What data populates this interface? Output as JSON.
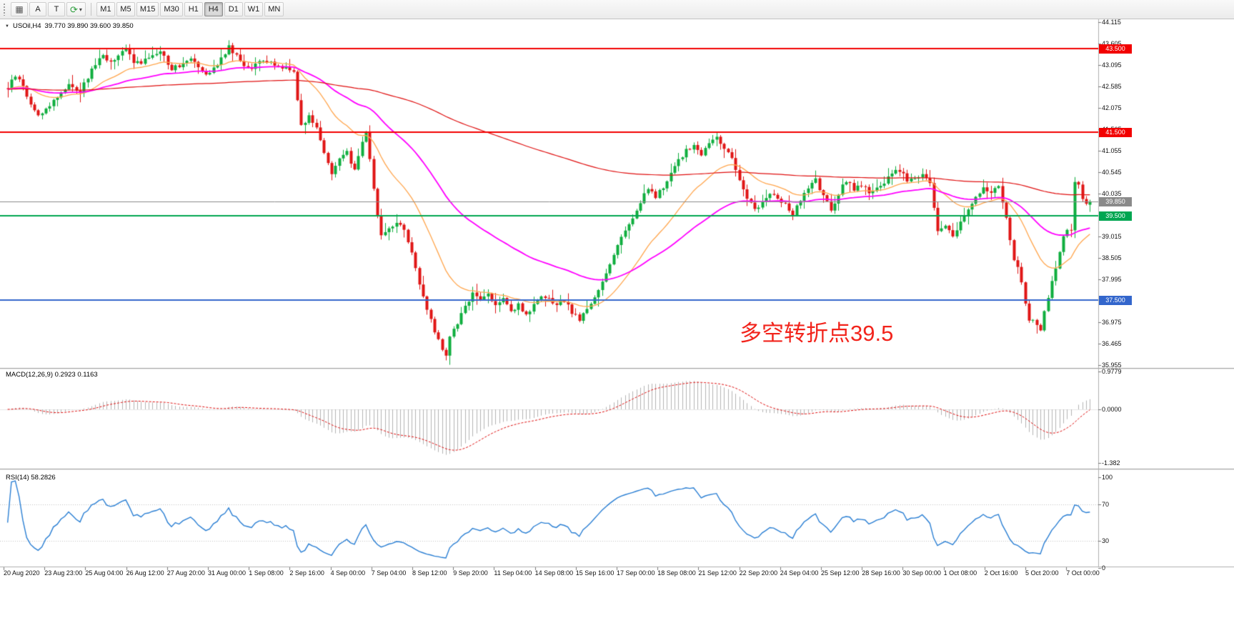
{
  "toolbar": {
    "grid_icon": "▦",
    "refresh_icon": "⟳",
    "caret_icon": "▾",
    "buttons": [
      {
        "label": "A"
      },
      {
        "label": "T"
      }
    ],
    "timeframes": [
      "M1",
      "M5",
      "M15",
      "M30",
      "H1",
      "H4",
      "D1",
      "W1",
      "MN"
    ],
    "active_timeframe": "H4"
  },
  "chart": {
    "expand_icon": "▼",
    "title": "USOil,H4",
    "ohlc_text": "39.770 39.890 39.600 39.850",
    "annotation": {
      "text": "多空转折点39.5",
      "color": "#f2241c"
    }
  },
  "macd_panel": {
    "label": "MACD(12,26,9) 0.2923 0.1163"
  },
  "rsi_panel": {
    "label": "RSI(14) 58.2826"
  },
  "chart_data": {
    "type": "candlestick",
    "symbol": "USOil",
    "timeframe": "H4",
    "current_ohlc": {
      "open": 39.77,
      "high": 39.89,
      "low": 39.6,
      "close": 39.85
    },
    "candle_count": 285,
    "up_color": "#0fae3e",
    "down_color": "#e01515",
    "ylim": [
      35.88,
      44.19
    ],
    "y_ticks": [
      "44.115",
      "43.605",
      "43.095",
      "42.585",
      "42.075",
      "41.565",
      "41.055",
      "40.545",
      "40.035",
      "39.015",
      "38.505",
      "37.995",
      "36.975",
      "36.465",
      "35.955"
    ],
    "x_ticks": [
      "20 Aug 2020",
      "23 Aug 23:00",
      "25 Aug 04:00",
      "26 Aug 12:00",
      "27 Aug 20:00",
      "31 Aug 00:00",
      "1 Sep 08:00",
      "2 Sep 16:00",
      "4 Sep 00:00",
      "7 Sep 04:00",
      "8 Sep 12:00",
      "9 Sep 20:00",
      "11 Sep 04:00",
      "14 Sep 08:00",
      "15 Sep 16:00",
      "17 Sep 00:00",
      "18 Sep 08:00",
      "21 Sep 12:00",
      "22 Sep 20:00",
      "24 Sep 04:00",
      "25 Sep 12:00",
      "28 Sep 16:00",
      "30 Sep 00:00",
      "1 Oct 08:00",
      "2 Oct 16:00",
      "5 Oct 20:00",
      "7 Oct 00:00"
    ],
    "levels": [
      {
        "price": 43.5,
        "label": "43.500",
        "color": "#f20000",
        "width": 2
      },
      {
        "price": 41.5,
        "label": "41.500",
        "color": "#f20000",
        "width": 2
      },
      {
        "price": 39.85,
        "label": "39.850",
        "color": "#8a8a8a",
        "width": 1,
        "current": true
      },
      {
        "price": 39.5,
        "label": "39.500",
        "color": "#00a651",
        "width": 2
      },
      {
        "price": 37.5,
        "label": "37.500",
        "color": "#3366cc",
        "width": 2
      }
    ],
    "price_path_anchors": [
      [
        0,
        42.55
      ],
      [
        2,
        42.85
      ],
      [
        4,
        42.6
      ],
      [
        6,
        42.15
      ],
      [
        8,
        41.9
      ],
      [
        10,
        42.05
      ],
      [
        13,
        42.35
      ],
      [
        16,
        42.65
      ],
      [
        19,
        42.45
      ],
      [
        22,
        43.0
      ],
      [
        25,
        43.35
      ],
      [
        27,
        43.15
      ],
      [
        29,
        43.3
      ],
      [
        31,
        43.5
      ],
      [
        33,
        43.2
      ],
      [
        35,
        43.1
      ],
      [
        37,
        43.3
      ],
      [
        40,
        43.45
      ],
      [
        43,
        43.0
      ],
      [
        46,
        43.15
      ],
      [
        48,
        43.3
      ],
      [
        50,
        43.1
      ],
      [
        52,
        42.9
      ],
      [
        55,
        43.1
      ],
      [
        58,
        43.55
      ],
      [
        60,
        43.3
      ],
      [
        62,
        43.1
      ],
      [
        64,
        43.05
      ],
      [
        67,
        43.2
      ],
      [
        70,
        43.1
      ],
      [
        73,
        43.05
      ],
      [
        75,
        42.95
      ],
      [
        76,
        42.3
      ],
      [
        77,
        41.65
      ],
      [
        79,
        41.9
      ],
      [
        81,
        41.6
      ],
      [
        83,
        41.05
      ],
      [
        85,
        40.5
      ],
      [
        87,
        40.85
      ],
      [
        89,
        41.0
      ],
      [
        91,
        40.6
      ],
      [
        93,
        41.25
      ],
      [
        94,
        41.5
      ],
      [
        95,
        40.9
      ],
      [
        96,
        40.2
      ],
      [
        97,
        39.45
      ],
      [
        98,
        39.05
      ],
      [
        100,
        39.2
      ],
      [
        102,
        39.35
      ],
      [
        104,
        39.2
      ],
      [
        106,
        38.65
      ],
      [
        108,
        37.85
      ],
      [
        110,
        37.25
      ],
      [
        112,
        36.75
      ],
      [
        114,
        36.35
      ],
      [
        115,
        36.2
      ],
      [
        116,
        36.6
      ],
      [
        118,
        36.95
      ],
      [
        120,
        37.35
      ],
      [
        122,
        37.65
      ],
      [
        124,
        37.5
      ],
      [
        126,
        37.65
      ],
      [
        128,
        37.4
      ],
      [
        130,
        37.5
      ],
      [
        132,
        37.2
      ],
      [
        134,
        37.4
      ],
      [
        136,
        37.15
      ],
      [
        138,
        37.35
      ],
      [
        140,
        37.55
      ],
      [
        142,
        37.5
      ],
      [
        144,
        37.35
      ],
      [
        146,
        37.5
      ],
      [
        148,
        37.2
      ],
      [
        150,
        37.05
      ],
      [
        152,
        37.25
      ],
      [
        154,
        37.55
      ],
      [
        156,
        37.95
      ],
      [
        158,
        38.35
      ],
      [
        160,
        38.85
      ],
      [
        162,
        39.15
      ],
      [
        164,
        39.45
      ],
      [
        166,
        39.85
      ],
      [
        168,
        40.15
      ],
      [
        170,
        39.95
      ],
      [
        172,
        40.2
      ],
      [
        174,
        40.5
      ],
      [
        176,
        40.85
      ],
      [
        178,
        41.05
      ],
      [
        180,
        41.2
      ],
      [
        182,
        40.95
      ],
      [
        184,
        41.25
      ],
      [
        186,
        41.35
      ],
      [
        188,
        41.15
      ],
      [
        190,
        40.85
      ],
      [
        192,
        40.35
      ],
      [
        194,
        39.95
      ],
      [
        196,
        39.65
      ],
      [
        198,
        39.85
      ],
      [
        200,
        40.05
      ],
      [
        202,
        39.95
      ],
      [
        204,
        39.75
      ],
      [
        206,
        39.55
      ],
      [
        208,
        39.85
      ],
      [
        210,
        40.15
      ],
      [
        212,
        40.35
      ],
      [
        214,
        39.95
      ],
      [
        216,
        39.65
      ],
      [
        218,
        40.05
      ],
      [
        220,
        40.35
      ],
      [
        222,
        40.15
      ],
      [
        224,
        40.25
      ],
      [
        226,
        40.05
      ],
      [
        228,
        40.2
      ],
      [
        230,
        40.3
      ],
      [
        232,
        40.5
      ],
      [
        234,
        40.6
      ],
      [
        236,
        40.35
      ],
      [
        238,
        40.4
      ],
      [
        240,
        40.55
      ],
      [
        242,
        40.25
      ],
      [
        243,
        39.65
      ],
      [
        244,
        39.15
      ],
      [
        246,
        39.25
      ],
      [
        248,
        39.05
      ],
      [
        250,
        39.35
      ],
      [
        252,
        39.65
      ],
      [
        254,
        39.95
      ],
      [
        256,
        40.15
      ],
      [
        258,
        40.05
      ],
      [
        260,
        40.2
      ],
      [
        261,
        39.85
      ],
      [
        262,
        39.45
      ],
      [
        263,
        38.95
      ],
      [
        264,
        38.45
      ],
      [
        265,
        38.25
      ],
      [
        266,
        37.95
      ],
      [
        267,
        37.45
      ],
      [
        268,
        37.05
      ],
      [
        270,
        36.95
      ],
      [
        271,
        36.8
      ],
      [
        272,
        37.25
      ],
      [
        274,
        37.9
      ],
      [
        276,
        38.6
      ],
      [
        277,
        39.0
      ],
      [
        278,
        39.2
      ],
      [
        279,
        39.2
      ],
      [
        280,
        40.3
      ],
      [
        281,
        40.2
      ],
      [
        282,
        39.95
      ],
      [
        283,
        39.75
      ],
      [
        284,
        39.85
      ]
    ],
    "overlays": [
      {
        "name": "ma-fast",
        "period": 21,
        "color": "#ffa64d",
        "width": 1.3
      },
      {
        "name": "ma-mid",
        "period": 55,
        "color": "#ff00ff",
        "width": 1.8
      },
      {
        "name": "ma-slow",
        "period": 250,
        "color": "#e01010",
        "width": 1.2
      }
    ],
    "macd": {
      "params": [
        12,
        26,
        9
      ],
      "values": [
        0.2923,
        0.1163
      ],
      "hist_color": "#b4b4b4",
      "signal_color": "#e01010",
      "ylim": [
        -1.55,
        1.05
      ],
      "y_ticks": [
        {
          "v": 0.9779,
          "text": "0.9779"
        },
        {
          "v": 0,
          "text": "0.0000"
        },
        {
          "v": -1.382,
          "text": "-1.382"
        }
      ]
    },
    "rsi": {
      "period": 14,
      "current": 58.2826,
      "color": "#2a7fd4",
      "level_lines": [
        70,
        30
      ],
      "ylim": [
        0,
        100
      ],
      "y_ticks": [
        {
          "v": 100,
          "text": "100"
        },
        {
          "v": 70,
          "text": "70"
        },
        {
          "v": 30,
          "text": "30"
        },
        {
          "v": 0,
          "text": "0"
        }
      ]
    }
  }
}
